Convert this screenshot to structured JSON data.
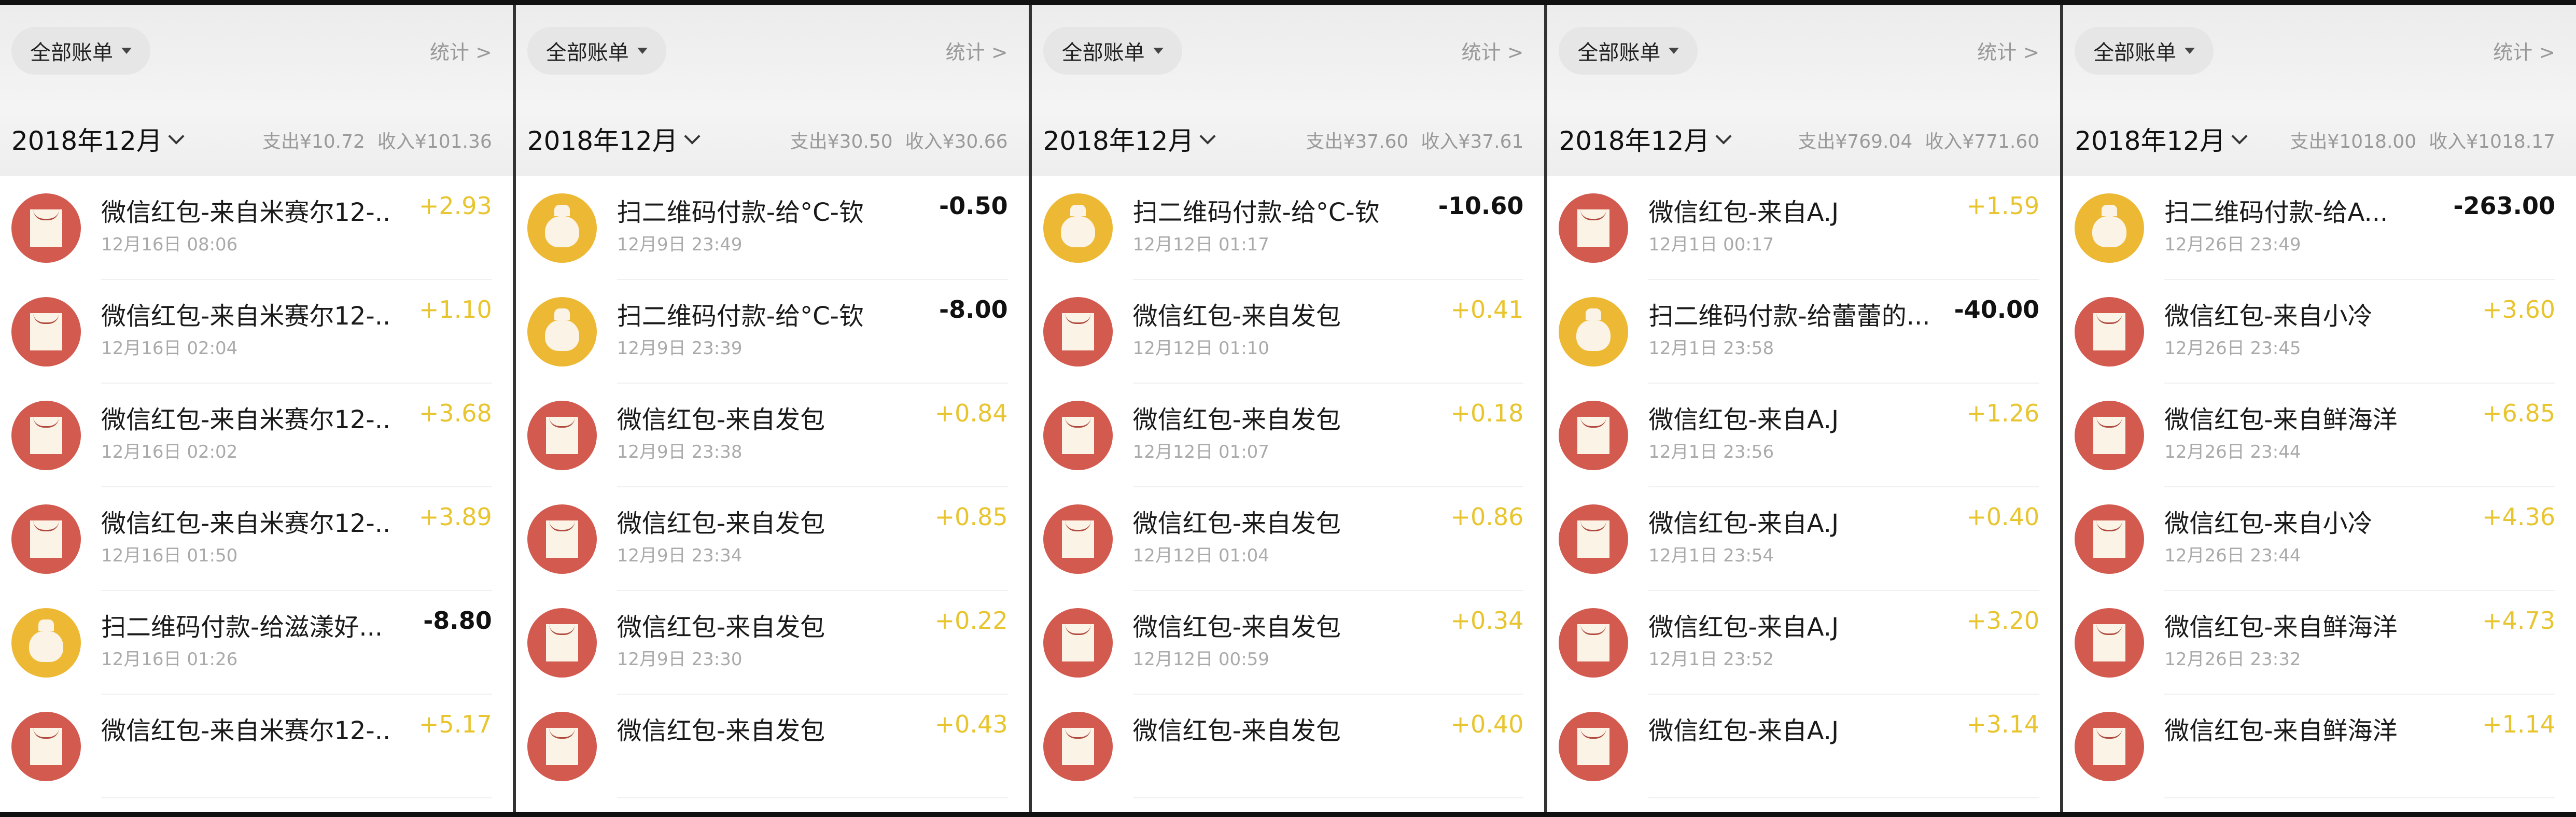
{
  "colors": {
    "expense_icon": "#edb935",
    "income_icon": "#d35a4f",
    "income_amount": "#e8c52e"
  },
  "panels": [
    {
      "filter": "全部账单",
      "stats": "统计 >",
      "month": "2018年12月",
      "expense": "支出¥10.72",
      "income": "收入¥101.36",
      "rows": [
        {
          "icon": "red-envelope-icon",
          "title": "微信红包-来自米赛尔12-...",
          "time": "12月16日 08:06",
          "amount": "+2.93",
          "type": "in"
        },
        {
          "icon": "red-envelope-icon",
          "title": "微信红包-来自米赛尔12-...",
          "time": "12月16日 02:04",
          "amount": "+1.10",
          "type": "in"
        },
        {
          "icon": "red-envelope-icon",
          "title": "微信红包-来自米赛尔12-...",
          "time": "12月16日 02:02",
          "amount": "+3.68",
          "type": "in"
        },
        {
          "icon": "red-envelope-icon",
          "title": "微信红包-来自米赛尔12-...",
          "time": "12月16日 01:50",
          "amount": "+3.89",
          "type": "in"
        },
        {
          "icon": "money-bag-icon",
          "title": "扫二维码付款-给滋漾好...",
          "time": "12月16日 01:26",
          "amount": "-8.80",
          "type": "out"
        },
        {
          "icon": "red-envelope-icon",
          "title": "微信红包-来自米赛尔12-...",
          "time": "",
          "amount": "+5.17",
          "type": "in"
        }
      ]
    },
    {
      "filter": "全部账单",
      "stats": "统计 >",
      "month": "2018年12月",
      "expense": "支出¥30.50",
      "income": "收入¥30.66",
      "rows": [
        {
          "icon": "money-bag-icon",
          "title": "扫二维码付款-给°C-钦",
          "time": "12月9日 23:49",
          "amount": "-0.50",
          "type": "out"
        },
        {
          "icon": "money-bag-icon",
          "title": "扫二维码付款-给°C-钦",
          "time": "12月9日 23:39",
          "amount": "-8.00",
          "type": "out"
        },
        {
          "icon": "red-envelope-icon",
          "title": "微信红包-来自发包",
          "time": "12月9日 23:38",
          "amount": "+0.84",
          "type": "in"
        },
        {
          "icon": "red-envelope-icon",
          "title": "微信红包-来自发包",
          "time": "12月9日 23:34",
          "amount": "+0.85",
          "type": "in"
        },
        {
          "icon": "red-envelope-icon",
          "title": "微信红包-来自发包",
          "time": "12月9日 23:30",
          "amount": "+0.22",
          "type": "in"
        },
        {
          "icon": "red-envelope-icon",
          "title": "微信红包-来自发包",
          "time": "",
          "amount": "+0.43",
          "type": "in"
        }
      ]
    },
    {
      "filter": "全部账单",
      "stats": "统计 >",
      "month": "2018年12月",
      "expense": "支出¥37.60",
      "income": "收入¥37.61",
      "rows": [
        {
          "icon": "money-bag-icon",
          "title": "扫二维码付款-给°C-钦",
          "time": "12月12日 01:17",
          "amount": "-10.60",
          "type": "out"
        },
        {
          "icon": "red-envelope-icon",
          "title": "微信红包-来自发包",
          "time": "12月12日 01:10",
          "amount": "+0.41",
          "type": "in"
        },
        {
          "icon": "red-envelope-icon",
          "title": "微信红包-来自发包",
          "time": "12月12日 01:07",
          "amount": "+0.18",
          "type": "in"
        },
        {
          "icon": "red-envelope-icon",
          "title": "微信红包-来自发包",
          "time": "12月12日 01:04",
          "amount": "+0.86",
          "type": "in"
        },
        {
          "icon": "red-envelope-icon",
          "title": "微信红包-来自发包",
          "time": "12月12日 00:59",
          "amount": "+0.34",
          "type": "in"
        },
        {
          "icon": "red-envelope-icon",
          "title": "微信红包-来自发包",
          "time": "",
          "amount": "+0.40",
          "type": "in"
        }
      ]
    },
    {
      "filter": "全部账单",
      "stats": "统计 >",
      "month": "2018年12月",
      "expense": "支出¥769.04",
      "income": "收入¥771.60",
      "rows": [
        {
          "icon": "red-envelope-icon",
          "title": "微信红包-来自A.J",
          "time": "12月1日 00:17",
          "amount": "+1.59",
          "type": "in"
        },
        {
          "icon": "money-bag-icon",
          "title": "扫二维码付款-给蕾蕾的...",
          "time": "12月1日 23:58",
          "amount": "-40.00",
          "type": "out"
        },
        {
          "icon": "red-envelope-icon",
          "title": "微信红包-来自A.J",
          "time": "12月1日 23:56",
          "amount": "+1.26",
          "type": "in"
        },
        {
          "icon": "red-envelope-icon",
          "title": "微信红包-来自A.J",
          "time": "12月1日 23:54",
          "amount": "+0.40",
          "type": "in"
        },
        {
          "icon": "red-envelope-icon",
          "title": "微信红包-来自A.J",
          "time": "12月1日 23:52",
          "amount": "+3.20",
          "type": "in"
        },
        {
          "icon": "red-envelope-icon",
          "title": "微信红包-来自A.J",
          "time": "",
          "amount": "+3.14",
          "type": "in"
        }
      ]
    },
    {
      "filter": "全部账单",
      "stats": "统计 >",
      "month": "2018年12月",
      "expense": "支出¥1018.00",
      "income": "收入¥1018.17",
      "rows": [
        {
          "icon": "money-bag-icon",
          "title": "扫二维码付款-给A...",
          "time": "12月26日 23:49",
          "amount": "-263.00",
          "type": "out"
        },
        {
          "icon": "red-envelope-icon",
          "title": "微信红包-来自小冷",
          "time": "12月26日 23:45",
          "amount": "+3.60",
          "type": "in"
        },
        {
          "icon": "red-envelope-icon",
          "title": "微信红包-来自鲜海洋",
          "time": "12月26日 23:44",
          "amount": "+6.85",
          "type": "in"
        },
        {
          "icon": "red-envelope-icon",
          "title": "微信红包-来自小冷",
          "time": "12月26日 23:44",
          "amount": "+4.36",
          "type": "in"
        },
        {
          "icon": "red-envelope-icon",
          "title": "微信红包-来自鲜海洋",
          "time": "12月26日 23:32",
          "amount": "+4.73",
          "type": "in"
        },
        {
          "icon": "red-envelope-icon",
          "title": "微信红包-来自鲜海洋",
          "time": "",
          "amount": "+1.14",
          "type": "in"
        }
      ]
    }
  ]
}
